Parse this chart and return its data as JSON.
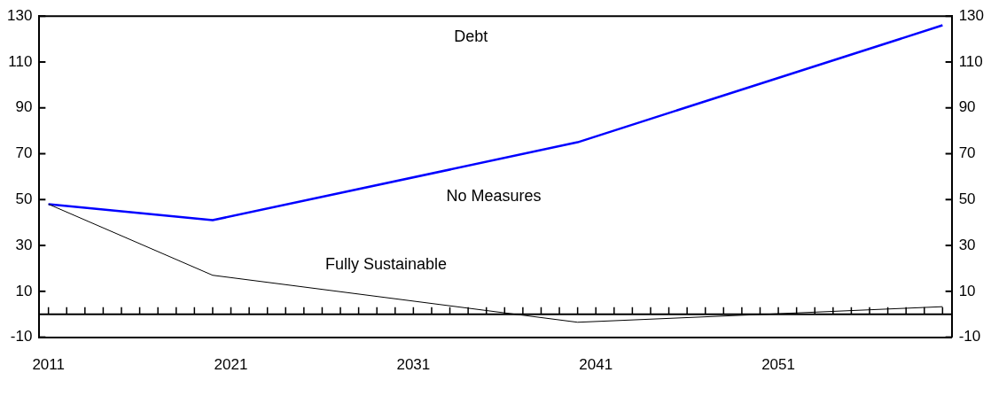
{
  "chart_data": {
    "type": "line",
    "title": "Debt",
    "series": [
      {
        "name": "No Measures",
        "color": "#0000ff",
        "x": [
          2011,
          2020,
          2040,
          2060
        ],
        "values": [
          48,
          41,
          75,
          126
        ]
      },
      {
        "name": "Fully Sustainable",
        "color": "#000000",
        "x": [
          2011,
          2020,
          2040,
          2060
        ],
        "values": [
          48,
          17,
          -3.5,
          3.3
        ]
      }
    ],
    "xlim": [
      2010.5,
      2060.5
    ],
    "xticks": [
      2011,
      2021,
      2031,
      2041,
      2051
    ],
    "ylim": [
      -10,
      130
    ],
    "yticks": [
      -10,
      10,
      30,
      50,
      70,
      90,
      110,
      130
    ],
    "y2lim": [
      -10,
      130
    ],
    "y2ticks": [
      -10,
      10,
      30,
      50,
      70,
      90,
      110,
      130
    ],
    "ref_lines": [
      {
        "axis": "y",
        "value": 0,
        "color": "#000000"
      }
    ],
    "grid": false,
    "legend": false,
    "marker": "none",
    "line_style": "solid"
  }
}
